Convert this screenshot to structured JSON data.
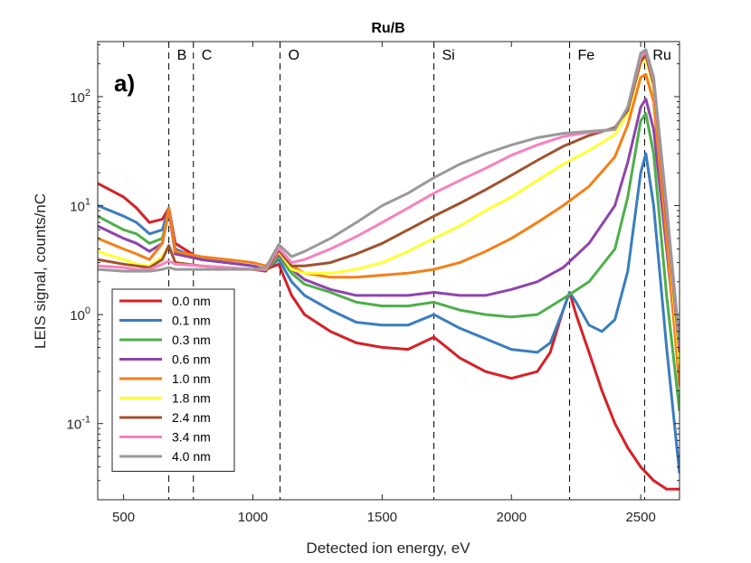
{
  "chart_data": {
    "type": "line",
    "title": "Ru/B",
    "panel_label": "a)",
    "xlabel": "Detected ion energy, eV",
    "ylabel": "LEIS signal, counts/nC",
    "y_scale": "log",
    "xlim": [
      400,
      2650
    ],
    "ylim": [
      0.02,
      320
    ],
    "x_ticks": [
      {
        "value": 500,
        "label": "500"
      },
      {
        "value": 1000,
        "label": "1000"
      },
      {
        "value": 1500,
        "label": "1500"
      },
      {
        "value": 2000,
        "label": "2000"
      },
      {
        "value": 2500,
        "label": "2500"
      }
    ],
    "y_ticks": [
      {
        "value": 0.1,
        "base": "10",
        "exp": "-1"
      },
      {
        "value": 1,
        "base": "10",
        "exp": "0"
      },
      {
        "value": 10,
        "base": "10",
        "exp": "1"
      },
      {
        "value": 100,
        "base": "10",
        "exp": "2"
      }
    ],
    "element_markers": [
      {
        "label": "B",
        "x": 675
      },
      {
        "label": "C",
        "x": 770
      },
      {
        "label": "O",
        "x": 1105
      },
      {
        "label": "Si",
        "x": 1700
      },
      {
        "label": "Fe",
        "x": 2225
      },
      {
        "label": "Ru",
        "x": 2515
      }
    ],
    "legend_position": "bottom-left",
    "series": [
      {
        "name": "0.0 nm",
        "color": "#d62027",
        "x": [
          400,
          500,
          550,
          600,
          650,
          675,
          700,
          800,
          900,
          1000,
          1050,
          1100,
          1150,
          1200,
          1300,
          1400,
          1500,
          1600,
          1700,
          1750,
          1800,
          1900,
          2000,
          2100,
          2150,
          2200,
          2225,
          2250,
          2300,
          2350,
          2400,
          2450,
          2500,
          2550,
          2600,
          2650
        ],
        "y": [
          16,
          12,
          9.5,
          7,
          7.5,
          9.5,
          4.5,
          3.2,
          3,
          2.8,
          2.6,
          2.9,
          1.5,
          1.0,
          0.7,
          0.55,
          0.5,
          0.48,
          0.62,
          0.5,
          0.4,
          0.3,
          0.26,
          0.3,
          0.45,
          1.1,
          1.6,
          1.0,
          0.45,
          0.2,
          0.1,
          0.06,
          0.04,
          0.03,
          0.025,
          0.025
        ]
      },
      {
        "name": "0.1 nm",
        "color": "#3a7dbf",
        "x": [
          400,
          500,
          550,
          600,
          650,
          675,
          700,
          800,
          900,
          1000,
          1050,
          1100,
          1150,
          1200,
          1300,
          1400,
          1500,
          1600,
          1700,
          1800,
          1900,
          2000,
          2100,
          2150,
          2200,
          2225,
          2250,
          2300,
          2350,
          2400,
          2450,
          2500,
          2520,
          2550,
          2600,
          2650
        ],
        "y": [
          10,
          8,
          7,
          5.5,
          6,
          9.5,
          4,
          3.2,
          3,
          2.8,
          2.6,
          3.2,
          2.0,
          1.5,
          1.1,
          0.85,
          0.8,
          0.8,
          1.0,
          0.75,
          0.6,
          0.48,
          0.45,
          0.55,
          1.1,
          1.6,
          1.3,
          0.8,
          0.7,
          0.9,
          2.5,
          20,
          30,
          10,
          0.5,
          0.035
        ]
      },
      {
        "name": "0.3 nm",
        "color": "#4daf4a",
        "x": [
          400,
          500,
          550,
          600,
          650,
          675,
          700,
          800,
          900,
          1000,
          1050,
          1100,
          1150,
          1200,
          1300,
          1400,
          1500,
          1600,
          1700,
          1800,
          1900,
          2000,
          2100,
          2200,
          2300,
          2400,
          2450,
          2500,
          2520,
          2550,
          2600,
          2650
        ],
        "y": [
          8,
          6,
          5.5,
          4.5,
          5,
          9,
          3.8,
          3.2,
          3,
          2.8,
          2.6,
          3.4,
          2.4,
          1.9,
          1.6,
          1.3,
          1.2,
          1.2,
          1.3,
          1.1,
          1.0,
          0.95,
          1.0,
          1.4,
          2,
          4,
          12,
          60,
          70,
          30,
          1.5,
          0.13
        ]
      },
      {
        "name": "0.6 nm",
        "color": "#8e44ad",
        "x": [
          400,
          500,
          550,
          600,
          650,
          675,
          700,
          800,
          900,
          1000,
          1050,
          1100,
          1150,
          1200,
          1300,
          1400,
          1500,
          1600,
          1700,
          1800,
          1900,
          2000,
          2100,
          2200,
          2300,
          2400,
          2450,
          2500,
          2520,
          2550,
          2600,
          2650
        ],
        "y": [
          6.5,
          5,
          4.5,
          3.8,
          4.5,
          9,
          3.6,
          3.2,
          3,
          2.8,
          2.6,
          3.6,
          2.6,
          2.1,
          1.7,
          1.5,
          1.5,
          1.5,
          1.6,
          1.5,
          1.5,
          1.7,
          2.0,
          2.7,
          4.5,
          10,
          25,
          80,
          95,
          50,
          4,
          0.3
        ]
      },
      {
        "name": "1.0 nm",
        "color": "#f57f17",
        "x": [
          400,
          500,
          550,
          600,
          650,
          675,
          700,
          800,
          900,
          1000,
          1050,
          1100,
          1150,
          1200,
          1300,
          1400,
          1500,
          1600,
          1700,
          1800,
          1900,
          2000,
          2100,
          2200,
          2300,
          2400,
          2450,
          2500,
          2520,
          2550,
          2600,
          2650
        ],
        "y": [
          5,
          4,
          3.6,
          3.2,
          4.5,
          9.5,
          3.8,
          3.4,
          3.2,
          3,
          2.8,
          3.7,
          2.8,
          2.4,
          2.2,
          2.2,
          2.3,
          2.4,
          2.6,
          3,
          3.8,
          5,
          7,
          10,
          15,
          28,
          55,
          150,
          160,
          90,
          5,
          0.22
        ]
      },
      {
        "name": "1.8 nm",
        "color": "#ffff33",
        "x": [
          400,
          500,
          550,
          600,
          650,
          675,
          700,
          800,
          900,
          1000,
          1050,
          1100,
          1150,
          1200,
          1300,
          1400,
          1500,
          1600,
          1700,
          1800,
          1900,
          2000,
          2100,
          2200,
          2300,
          2400,
          2450,
          2500,
          2520,
          2550,
          2600,
          2650
        ],
        "y": [
          3.8,
          3.2,
          2.9,
          2.8,
          3.4,
          4.3,
          3.0,
          2.8,
          2.7,
          2.6,
          2.5,
          3.8,
          2.6,
          2.4,
          2.4,
          2.6,
          3.0,
          3.8,
          5,
          6.5,
          9,
          12,
          17,
          24,
          32,
          45,
          70,
          200,
          220,
          120,
          8,
          0.35
        ]
      },
      {
        "name": "2.4 nm",
        "color": "#a0522d",
        "x": [
          400,
          500,
          550,
          600,
          650,
          675,
          700,
          800,
          900,
          1000,
          1050,
          1100,
          1150,
          1200,
          1300,
          1400,
          1500,
          1600,
          1700,
          1800,
          1900,
          2000,
          2100,
          2200,
          2300,
          2400,
          2450,
          2500,
          2520,
          2550,
          2600,
          2650
        ],
        "y": [
          3.2,
          2.9,
          2.8,
          2.7,
          3.2,
          4.3,
          3.0,
          2.8,
          2.7,
          2.6,
          2.5,
          3.9,
          2.8,
          2.8,
          3.0,
          3.6,
          4.5,
          6,
          8,
          10.5,
          14,
          19,
          26,
          35,
          44,
          52,
          75,
          210,
          240,
          130,
          8,
          0.45
        ]
      },
      {
        "name": "3.4 nm",
        "color": "#f781bf",
        "x": [
          400,
          500,
          550,
          600,
          650,
          675,
          700,
          800,
          900,
          1000,
          1050,
          1100,
          1150,
          1200,
          1300,
          1400,
          1500,
          1600,
          1700,
          1800,
          1900,
          2000,
          2100,
          2200,
          2300,
          2400,
          2450,
          2500,
          2520,
          2550,
          2600,
          2650
        ],
        "y": [
          2.8,
          2.7,
          2.6,
          2.6,
          2.9,
          3.1,
          2.9,
          2.8,
          2.7,
          2.6,
          2.6,
          4.1,
          3.0,
          3.2,
          4.0,
          5.2,
          7,
          9.5,
          13,
          17,
          22,
          29,
          36,
          43,
          47,
          50,
          80,
          230,
          260,
          140,
          9,
          0.5
        ]
      },
      {
        "name": "4.0 nm",
        "color": "#999999",
        "x": [
          400,
          500,
          550,
          600,
          650,
          675,
          700,
          800,
          900,
          1000,
          1050,
          1100,
          1150,
          1200,
          1300,
          1400,
          1500,
          1600,
          1700,
          1800,
          1900,
          2000,
          2100,
          2200,
          2300,
          2400,
          2450,
          2500,
          2520,
          2550,
          2600,
          2650
        ],
        "y": [
          2.6,
          2.5,
          2.5,
          2.5,
          2.6,
          2.7,
          2.6,
          2.6,
          2.6,
          2.6,
          2.7,
          4.4,
          3.4,
          3.8,
          5,
          7,
          10,
          13,
          18,
          24,
          30,
          36,
          42,
          46,
          48,
          50,
          80,
          250,
          270,
          150,
          10,
          0.55
        ]
      }
    ]
  }
}
